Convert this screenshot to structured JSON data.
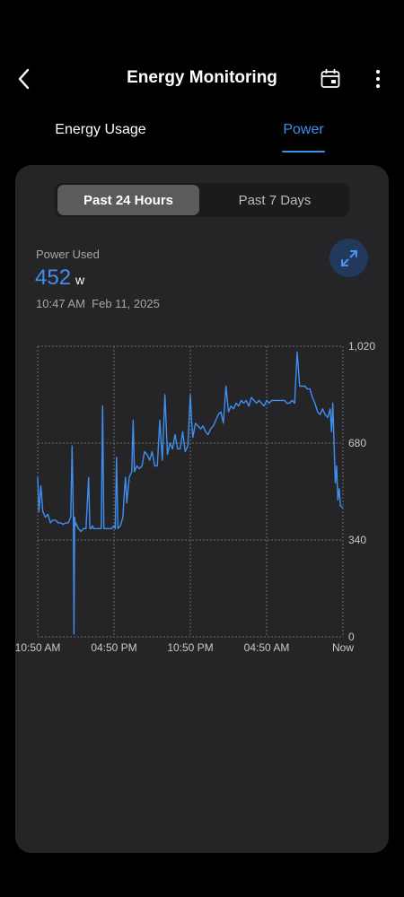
{
  "header": {
    "title": "Energy Monitoring"
  },
  "tabs": [
    {
      "label": "Energy Usage",
      "selected": false
    },
    {
      "label": "Power",
      "selected": true
    }
  ],
  "range_toggle": {
    "options": [
      "Past 24 Hours",
      "Past 7 Days"
    ],
    "selected": "Past 24 Hours"
  },
  "metric": {
    "label": "Power Used",
    "value": "452",
    "unit": "w",
    "time": "10:47 AM",
    "date": "Feb 11, 2025"
  },
  "colors": {
    "accent": "#3f8ff0",
    "card": "#252527",
    "background": "#000000"
  },
  "chart_data": {
    "type": "line",
    "ylim": [
      0,
      1020
    ],
    "yticks": [
      0,
      340,
      680,
      1020
    ],
    "ytick_labels": [
      "0",
      "340",
      "680",
      "1,020"
    ],
    "xlim": [
      0,
      24
    ],
    "xticks": [
      0,
      6,
      12,
      18,
      24
    ],
    "xtick_labels": [
      "10:50 AM",
      "04:50 PM",
      "10:50 PM",
      "04:50 AM",
      "Now"
    ],
    "grid": true,
    "series": [
      {
        "x": [
          0,
          0.1,
          0.25,
          0.4,
          0.6,
          0.8,
          1.0,
          1.2,
          1.4,
          1.6,
          1.8,
          2.0,
          2.2,
          2.4,
          2.6,
          2.7,
          2.8,
          2.85,
          2.9,
          2.95,
          3.0,
          3.2,
          3.4,
          3.6,
          3.8,
          4.0,
          4.1,
          4.2,
          4.3,
          4.4,
          4.6,
          4.8,
          5.0,
          5.1,
          5.2,
          5.3,
          5.4,
          5.6,
          5.8,
          6.0,
          6.1,
          6.2,
          6.3,
          6.5,
          6.7,
          6.8,
          6.9,
          7.0,
          7.2,
          7.4,
          7.5,
          7.6,
          7.8,
          8.0,
          8.2,
          8.4,
          8.6,
          8.8,
          9.0,
          9.2,
          9.4,
          9.6,
          9.8,
          10.0,
          10.2,
          10.4,
          10.6,
          10.8,
          11.0,
          11.2,
          11.4,
          11.6,
          11.8,
          12.0,
          12.1,
          12.2,
          12.4,
          12.6,
          12.8,
          13.0,
          13.2,
          13.4,
          13.6,
          13.8,
          14.0,
          14.2,
          14.4,
          14.6,
          14.8,
          15.0,
          15.2,
          15.4,
          15.6,
          15.8,
          16.0,
          16.2,
          16.4,
          16.6,
          16.8,
          17.0,
          17.2,
          17.4,
          17.6,
          17.8,
          18.0,
          18.2,
          18.4,
          18.6,
          18.8,
          19.0,
          19.2,
          19.4,
          19.6,
          19.8,
          20.0,
          20.2,
          20.4,
          20.6,
          20.8,
          21.0,
          21.2,
          21.4,
          21.6,
          21.8,
          22.0,
          22.2,
          22.4,
          22.6,
          22.8,
          23.0,
          23.1,
          23.2,
          23.3,
          23.4,
          23.5,
          23.6,
          23.7,
          23.8,
          24.0
        ],
        "y": [
          560,
          440,
          530,
          440,
          420,
          430,
          400,
          410,
          410,
          400,
          400,
          395,
          400,
          400,
          420,
          670,
          420,
          10,
          420,
          390,
          400,
          380,
          370,
          380,
          380,
          560,
          380,
          380,
          390,
          380,
          380,
          380,
          380,
          810,
          380,
          380,
          380,
          380,
          380,
          390,
          380,
          630,
          380,
          390,
          420,
          500,
          560,
          470,
          560,
          580,
          760,
          580,
          600,
          590,
          600,
          650,
          640,
          620,
          650,
          600,
          600,
          760,
          620,
          850,
          640,
          680,
          660,
          710,
          660,
          660,
          720,
          650,
          670,
          850,
          760,
          700,
          750,
          740,
          730,
          740,
          720,
          710,
          730,
          740,
          760,
          780,
          790,
          750,
          880,
          790,
          810,
          800,
          820,
          810,
          830,
          820,
          830,
          810,
          840,
          830,
          820,
          830,
          820,
          810,
          830,
          820,
          830,
          830,
          830,
          830,
          830,
          830,
          820,
          820,
          830,
          820,
          1000,
          880,
          880,
          880,
          870,
          870,
          840,
          820,
          790,
          780,
          800,
          780,
          770,
          800,
          720,
          820,
          680,
          540,
          600,
          480,
          520,
          460,
          452
        ]
      }
    ]
  }
}
